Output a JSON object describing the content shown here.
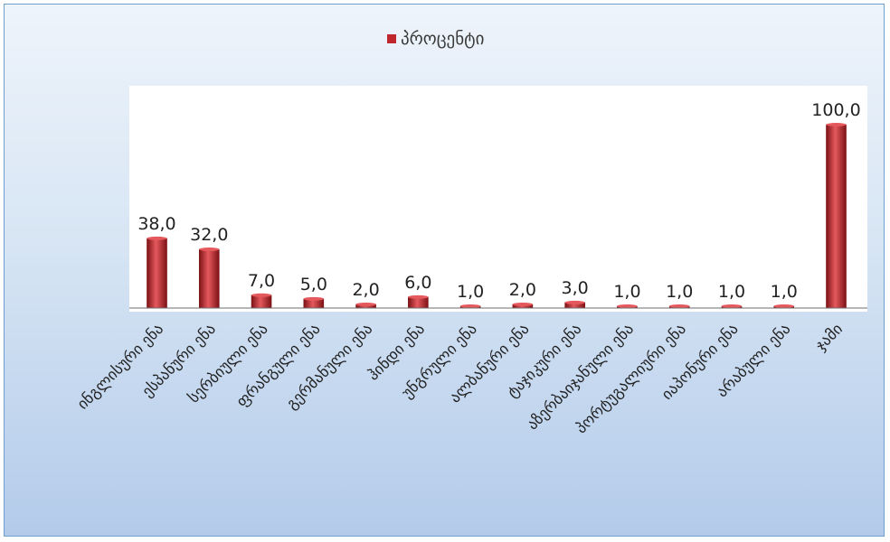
{
  "chart_data": {
    "type": "bar",
    "legend": {
      "label": "პროცენტი",
      "position": "top-center"
    },
    "categories": [
      "ინგლისური ენა",
      "ესპანური ენა",
      "სერბიული ენა",
      "ფრანგული ენა",
      "გერმანული ენა",
      "ჰინდი ენა",
      "უნგრული ენა",
      "ალბანური ენა",
      "ტაჯიკური ენა",
      "აზერბაიჯანული ენა",
      "პორტუგალიური ენა",
      "იაპონური ენა",
      "არაბული ენა",
      "ჯამი"
    ],
    "series": [
      {
        "name": "პროცენტი",
        "values": [
          38.0,
          32.0,
          7.0,
          5.0,
          2.0,
          6.0,
          1.0,
          2.0,
          3.0,
          1.0,
          1.0,
          1.0,
          1.0,
          100.0
        ],
        "labels": [
          "38,0",
          "32,0",
          "7,0",
          "5,0",
          "2,0",
          "6,0",
          "1,0",
          "2,0",
          "3,0",
          "1,0",
          "1,0",
          "1,0",
          "1,0",
          "100,0"
        ]
      }
    ],
    "ylim": [
      0,
      120
    ],
    "grid": false,
    "colors": {
      "bar": "#c0272d",
      "bar_light": "#e5595d",
      "bar_dark": "#7d1216",
      "frame_border": "#6f9fd0"
    }
  }
}
